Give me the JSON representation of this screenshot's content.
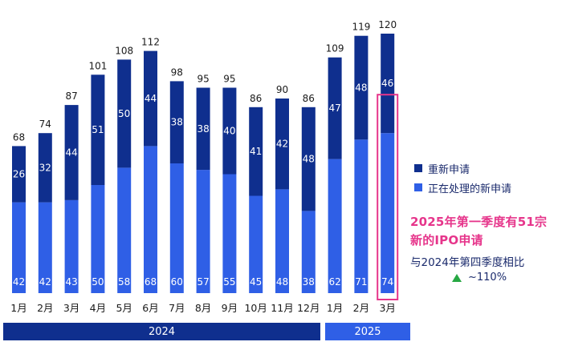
{
  "colors": {
    "new_applications": "#0f2f8e",
    "processing": "#2f5fe6",
    "highlight": "#e6358b",
    "year_2024_bar": "#0f2f8e",
    "year_2025_bar": "#2f5fe6",
    "increase_icon": "#27a843"
  },
  "legend": {
    "new": "重新申请",
    "processing": "正在处理的新申请"
  },
  "annotation": {
    "headline": "2025年第一季度有51宗\n新的IPO申请",
    "compare": "与2024年第四季度相比",
    "change": "~110%",
    "icon": "triangle-up-icon"
  },
  "years": [
    {
      "label": "2024"
    },
    {
      "label": "2025"
    }
  ],
  "chart_data": {
    "type": "bar",
    "stacked": true,
    "categories": [
      "1月",
      "2月",
      "3月",
      "4月",
      "5月",
      "6月",
      "7月",
      "8月",
      "9月",
      "10月",
      "11月",
      "12月",
      "1月",
      "2月",
      "3月"
    ],
    "category_years": [
      "2024",
      "2024",
      "2024",
      "2024",
      "2024",
      "2024",
      "2024",
      "2024",
      "2024",
      "2024",
      "2024",
      "2024",
      "2025",
      "2025",
      "2025"
    ],
    "series": [
      {
        "name": "正在处理的新申请",
        "values": [
          42,
          42,
          43,
          50,
          58,
          68,
          60,
          57,
          55,
          45,
          48,
          38,
          62,
          71,
          74
        ]
      },
      {
        "name": "重新申请",
        "values": [
          26,
          32,
          44,
          51,
          50,
          44,
          38,
          38,
          40,
          41,
          42,
          48,
          47,
          48,
          46
        ]
      }
    ],
    "totals": [
      68,
      74,
      87,
      101,
      108,
      112,
      98,
      95,
      95,
      86,
      90,
      86,
      109,
      119,
      120
    ],
    "ylim": [
      0,
      125
    ],
    "grid": false,
    "legend_position": "right",
    "highlight_category_index": 14
  }
}
